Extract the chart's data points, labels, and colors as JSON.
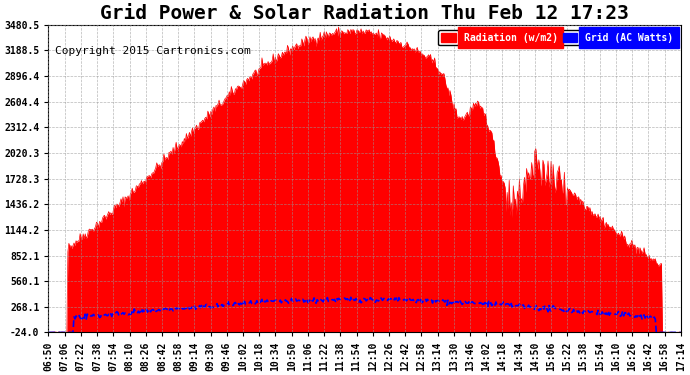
{
  "title": "Grid Power & Solar Radiation Thu Feb 12 17:23",
  "copyright": "Copyright 2015 Cartronics.com",
  "background_color": "#ffffff",
  "plot_background": "#ffffff",
  "yticks": [
    -24.0,
    268.1,
    560.1,
    852.1,
    1144.2,
    1436.2,
    1728.3,
    2020.3,
    2312.4,
    2604.4,
    2896.4,
    3188.5,
    3480.5
  ],
  "ymin": -24.0,
  "ymax": 3480.5,
  "x_labels": [
    "06:50",
    "07:06",
    "07:22",
    "07:38",
    "07:54",
    "08:10",
    "08:26",
    "08:42",
    "08:58",
    "09:14",
    "09:30",
    "09:46",
    "10:02",
    "10:18",
    "10:34",
    "10:50",
    "11:06",
    "11:22",
    "11:38",
    "11:54",
    "12:10",
    "12:26",
    "12:42",
    "12:58",
    "13:14",
    "13:30",
    "13:46",
    "14:02",
    "14:18",
    "14:34",
    "14:50",
    "15:06",
    "15:22",
    "15:38",
    "15:54",
    "16:10",
    "16:26",
    "16:42",
    "16:58",
    "17:14"
  ],
  "solar_color": "#ff0000",
  "grid_color": "#0000ff",
  "legend_solar_label": "Radiation (w/m2)",
  "legend_grid_label": "Grid (AC Watts)",
  "legend_solar_bg": "#ff0000",
  "legend_grid_bg": "#0000ff",
  "title_fontsize": 14,
  "copyright_fontsize": 8,
  "tick_fontsize": 7,
  "grid_style": "dashed",
  "grid_color_plot": "#999999"
}
